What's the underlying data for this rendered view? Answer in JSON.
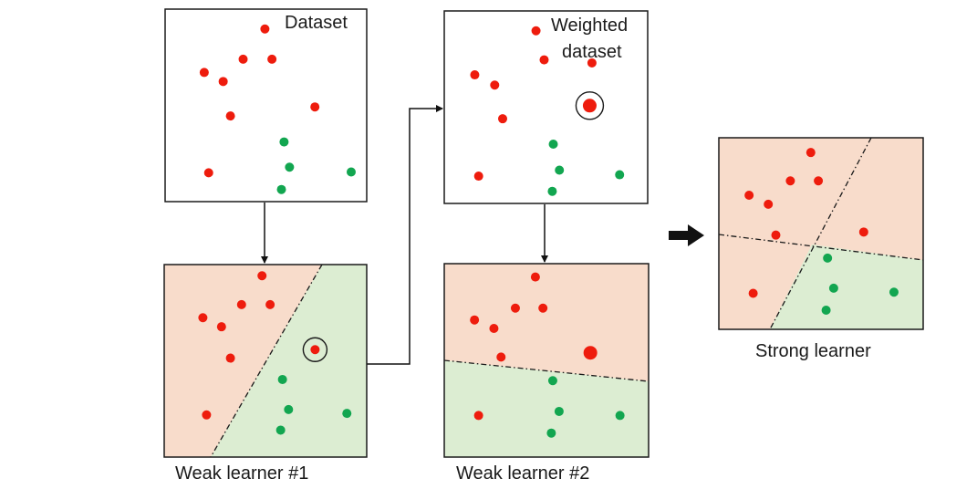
{
  "colors": {
    "red_point": "#ee1c0d",
    "green_point": "#12a650",
    "red_region": "#f8dccb",
    "green_region": "#dcedd2",
    "frame": "#1a1a1a",
    "arrow": "#111111"
  },
  "labels": {
    "dataset": "Dataset",
    "weighted_line1": "Weighted",
    "weighted_line2": "dataset",
    "weak1": "Weak learner #1",
    "weak2": "Weak learner #2",
    "strong": "Strong learner"
  },
  "panels": [
    {
      "id": "dataset",
      "kind": "plain",
      "points": [
        {
          "c": "red",
          "x": 0.495,
          "y": 0.103
        },
        {
          "c": "red",
          "x": 0.387,
          "y": 0.26
        },
        {
          "c": "red",
          "x": 0.53,
          "y": 0.26
        },
        {
          "c": "red",
          "x": 0.194,
          "y": 0.329
        },
        {
          "c": "red",
          "x": 0.288,
          "y": 0.376
        },
        {
          "c": "red",
          "x": 0.743,
          "y": 0.508
        },
        {
          "c": "red",
          "x": 0.324,
          "y": 0.555
        },
        {
          "c": "green",
          "x": 0.59,
          "y": 0.69
        },
        {
          "c": "green",
          "x": 0.617,
          "y": 0.821
        },
        {
          "c": "green",
          "x": 0.923,
          "y": 0.846
        },
        {
          "c": "red",
          "x": 0.216,
          "y": 0.85
        },
        {
          "c": "green",
          "x": 0.577,
          "y": 0.937
        }
      ]
    },
    {
      "id": "weighted",
      "kind": "plain",
      "points": [
        {
          "c": "red",
          "x": 0.451,
          "y": 0.103
        },
        {
          "c": "red",
          "x": 0.491,
          "y": 0.254
        },
        {
          "c": "red",
          "x": 0.726,
          "y": 0.27
        },
        {
          "c": "red",
          "x": 0.15,
          "y": 0.332
        },
        {
          "c": "red",
          "x": 0.248,
          "y": 0.385
        },
        {
          "c": "red",
          "x": 0.287,
          "y": 0.56
        },
        {
          "c": "green",
          "x": 0.536,
          "y": 0.692
        },
        {
          "c": "green",
          "x": 0.566,
          "y": 0.827
        },
        {
          "c": "green",
          "x": 0.862,
          "y": 0.851
        },
        {
          "c": "red",
          "x": 0.169,
          "y": 0.858
        },
        {
          "c": "green",
          "x": 0.531,
          "y": 0.937
        },
        {
          "c": "red",
          "x": 0.715,
          "y": 0.492,
          "big": true,
          "ring": true
        }
      ]
    },
    {
      "id": "weak1",
      "kind": "learner",
      "points": [
        {
          "c": "red",
          "x": 0.483,
          "y": 0.058
        },
        {
          "c": "red",
          "x": 0.382,
          "y": 0.208
        },
        {
          "c": "red",
          "x": 0.523,
          "y": 0.208
        },
        {
          "c": "red",
          "x": 0.191,
          "y": 0.276
        },
        {
          "c": "red",
          "x": 0.283,
          "y": 0.323
        },
        {
          "c": "red",
          "x": 0.327,
          "y": 0.486
        },
        {
          "c": "red",
          "x": 0.745,
          "y": 0.442,
          "ring": true
        },
        {
          "c": "green",
          "x": 0.584,
          "y": 0.597
        },
        {
          "c": "green",
          "x": 0.614,
          "y": 0.753
        },
        {
          "c": "green",
          "x": 0.902,
          "y": 0.773
        },
        {
          "c": "red",
          "x": 0.209,
          "y": 0.781
        },
        {
          "c": "green",
          "x": 0.575,
          "y": 0.86
        }
      ]
    },
    {
      "id": "weak2",
      "kind": "learner",
      "points": [
        {
          "c": "red",
          "x": 0.446,
          "y": 0.069
        },
        {
          "c": "red",
          "x": 0.348,
          "y": 0.23
        },
        {
          "c": "red",
          "x": 0.483,
          "y": 0.23
        },
        {
          "c": "red",
          "x": 0.148,
          "y": 0.291
        },
        {
          "c": "red",
          "x": 0.243,
          "y": 0.335
        },
        {
          "c": "red",
          "x": 0.715,
          "y": 0.461,
          "big": true
        },
        {
          "c": "red",
          "x": 0.278,
          "y": 0.483
        },
        {
          "c": "green",
          "x": 0.531,
          "y": 0.605
        },
        {
          "c": "green",
          "x": 0.562,
          "y": 0.764
        },
        {
          "c": "red",
          "x": 0.168,
          "y": 0.785
        },
        {
          "c": "green",
          "x": 0.86,
          "y": 0.785
        },
        {
          "c": "green",
          "x": 0.524,
          "y": 0.876
        }
      ]
    },
    {
      "id": "strong",
      "kind": "learner",
      "points": [
        {
          "c": "red",
          "x": 0.45,
          "y": 0.077
        },
        {
          "c": "red",
          "x": 0.35,
          "y": 0.225
        },
        {
          "c": "red",
          "x": 0.487,
          "y": 0.225
        },
        {
          "c": "red",
          "x": 0.148,
          "y": 0.3
        },
        {
          "c": "red",
          "x": 0.242,
          "y": 0.347
        },
        {
          "c": "red",
          "x": 0.709,
          "y": 0.492
        },
        {
          "c": "red",
          "x": 0.279,
          "y": 0.508
        },
        {
          "c": "green",
          "x": 0.532,
          "y": 0.628
        },
        {
          "c": "green",
          "x": 0.562,
          "y": 0.785
        },
        {
          "c": "green",
          "x": 0.857,
          "y": 0.806
        },
        {
          "c": "red",
          "x": 0.168,
          "y": 0.812
        },
        {
          "c": "green",
          "x": 0.525,
          "y": 0.9
        }
      ]
    }
  ]
}
